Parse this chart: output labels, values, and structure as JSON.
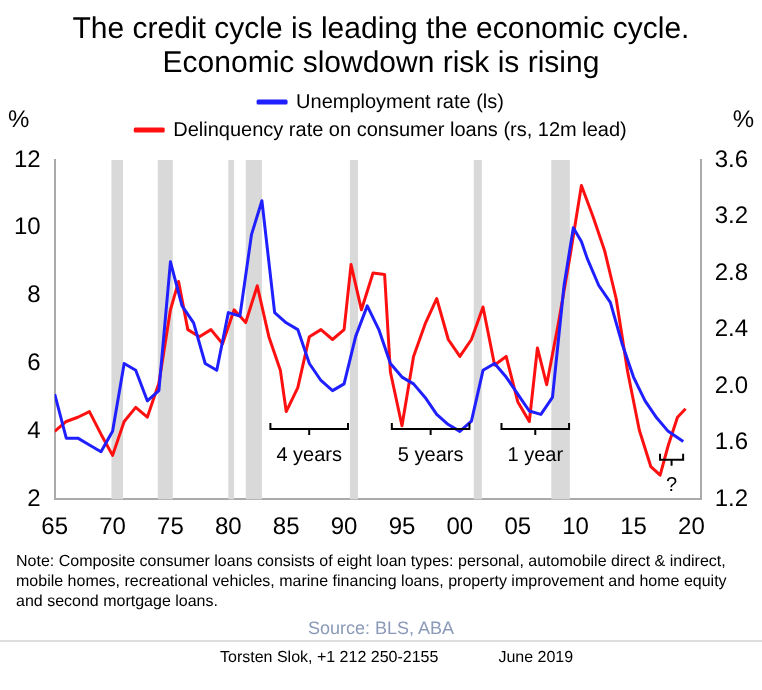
{
  "chart_data": {
    "type": "line",
    "title": "The credit cycle is leading the economic cycle. Economic slowdown risk is rising",
    "ylabel": "%",
    "y2label": "%",
    "xlim": [
      1965,
      2020.8
    ],
    "xticks": [
      {
        "value": 1965,
        "label": "65"
      },
      {
        "value": 1970,
        "label": "70"
      },
      {
        "value": 1975,
        "label": "75"
      },
      {
        "value": 1980,
        "label": "80"
      },
      {
        "value": 1985,
        "label": "85"
      },
      {
        "value": 1990,
        "label": "90"
      },
      {
        "value": 1995,
        "label": "95"
      },
      {
        "value": 2000,
        "label": "00"
      },
      {
        "value": 2005,
        "label": "05"
      },
      {
        "value": 2010,
        "label": "10"
      },
      {
        "value": 2015,
        "label": "15"
      },
      {
        "value": 2020,
        "label": "20"
      }
    ],
    "ylim": [
      2,
      12
    ],
    "yticks": [
      2,
      4,
      6,
      8,
      10,
      12
    ],
    "y2lim": [
      1.2,
      3.6
    ],
    "y2ticks": [
      1.2,
      1.6,
      {
        "value": 2,
        "label": "2.0"
      },
      2.4,
      2.8,
      3.2,
      3.6
    ],
    "grid": false,
    "legend": "top",
    "marker": "none",
    "line_style": "solid",
    "series": [
      {
        "name": "Unemployment rate (ls)",
        "color": "#1f1fff",
        "x": [
          1965,
          1966,
          1967,
          1968,
          1969,
          1970,
          1971,
          1972,
          1973,
          1974,
          1975,
          1976,
          1977,
          1978,
          1979,
          1980,
          1981,
          1982,
          1982.9,
          1984,
          1985,
          1986,
          1987,
          1988,
          1989,
          1990,
          1991,
          1992,
          1993,
          1994,
          1995,
          1996,
          1997,
          1998,
          1999,
          2000,
          2001,
          2002,
          2003,
          2004,
          2005,
          2006,
          2007,
          2008,
          2009,
          2009.8,
          2010.5,
          2011,
          2012,
          2013,
          2014,
          2015,
          2016,
          2017,
          2018,
          2019.3
        ],
        "values": [
          5.1,
          3.8,
          3.8,
          3.6,
          3.4,
          4.0,
          6.0,
          5.8,
          4.9,
          5.2,
          9.0,
          7.7,
          7.2,
          6.0,
          5.8,
          7.5,
          7.4,
          9.8,
          10.8,
          7.5,
          7.2,
          7.0,
          6.0,
          5.5,
          5.2,
          5.4,
          6.8,
          7.7,
          7.0,
          6.0,
          5.6,
          5.4,
          5.0,
          4.5,
          4.2,
          4.0,
          4.3,
          5.8,
          6.0,
          5.6,
          5.1,
          4.6,
          4.5,
          5.0,
          8.3,
          10.0,
          9.6,
          9.1,
          8.3,
          7.8,
          6.6,
          5.6,
          4.9,
          4.4,
          4.0,
          3.7
        ]
      },
      {
        "name": "Delinquency rate on consumer loans (rs, 12m lead)",
        "color": "#ff1010",
        "axis": "y2",
        "x": [
          1965,
          1966,
          1967,
          1968,
          1969,
          1970,
          1971,
          1972,
          1973,
          1974,
          1975,
          1975.7,
          1976.5,
          1977.5,
          1978.5,
          1979.5,
          1980.5,
          1981.5,
          1982.5,
          1983.5,
          1984.5,
          1985,
          1986,
          1987,
          1988,
          1989,
          1990,
          1990.6,
          1991.5,
          1992.5,
          1993.5,
          1994,
          1995,
          1996,
          1997,
          1998,
          1999,
          2000,
          2001,
          2002,
          2003,
          2004,
          2005,
          2006,
          2006.7,
          2007.5,
          2008.5,
          2009.5,
          2010.5,
          2011.5,
          2012.5,
          2013.5,
          2014.5,
          2015.5,
          2016.5,
          2017.3,
          2018,
          2018.8,
          2019.5
        ],
        "values": [
          1.68,
          1.75,
          1.78,
          1.82,
          1.66,
          1.51,
          1.75,
          1.85,
          1.78,
          2.02,
          2.54,
          2.74,
          2.4,
          2.35,
          2.4,
          2.3,
          2.54,
          2.45,
          2.71,
          2.35,
          2.11,
          1.82,
          1.99,
          2.35,
          2.4,
          2.33,
          2.4,
          2.86,
          2.54,
          2.8,
          2.79,
          2.1,
          1.72,
          2.21,
          2.44,
          2.62,
          2.33,
          2.21,
          2.33,
          2.56,
          2.15,
          2.21,
          1.89,
          1.75,
          2.27,
          2.01,
          2.44,
          2.91,
          3.42,
          3.2,
          2.96,
          2.62,
          2.1,
          1.69,
          1.43,
          1.37,
          1.58,
          1.78,
          1.84
        ]
      }
    ],
    "bands": [
      {
        "axis": "x",
        "from": 1969.9,
        "to": 1970.9,
        "color": "#d9d9d9"
      },
      {
        "axis": "x",
        "from": 1973.9,
        "to": 1975.2,
        "color": "#d9d9d9"
      },
      {
        "axis": "x",
        "from": 1980.0,
        "to": 1980.5,
        "color": "#d9d9d9"
      },
      {
        "axis": "x",
        "from": 1981.5,
        "to": 1982.9,
        "color": "#d9d9d9"
      },
      {
        "axis": "x",
        "from": 1990.5,
        "to": 1991.2,
        "color": "#d9d9d9"
      },
      {
        "axis": "x",
        "from": 2001.2,
        "to": 2001.9,
        "color": "#d9d9d9"
      },
      {
        "axis": "x",
        "from": 2007.9,
        "to": 2009.5,
        "color": "#d9d9d9"
      }
    ],
    "annotations": [
      "4 years",
      "5 years",
      "1 year",
      "?",
      "Note: Composite consumer loans consists of eight loan types: personal, automobile direct & indirect, mobile homes, recreational vehicles, marine financing loans, property improvement and home equity and second mortgage loans.",
      "Source: BLS, ABA",
      "Torsten Slok, +1 212 250-2155",
      "June 2019"
    ]
  }
}
